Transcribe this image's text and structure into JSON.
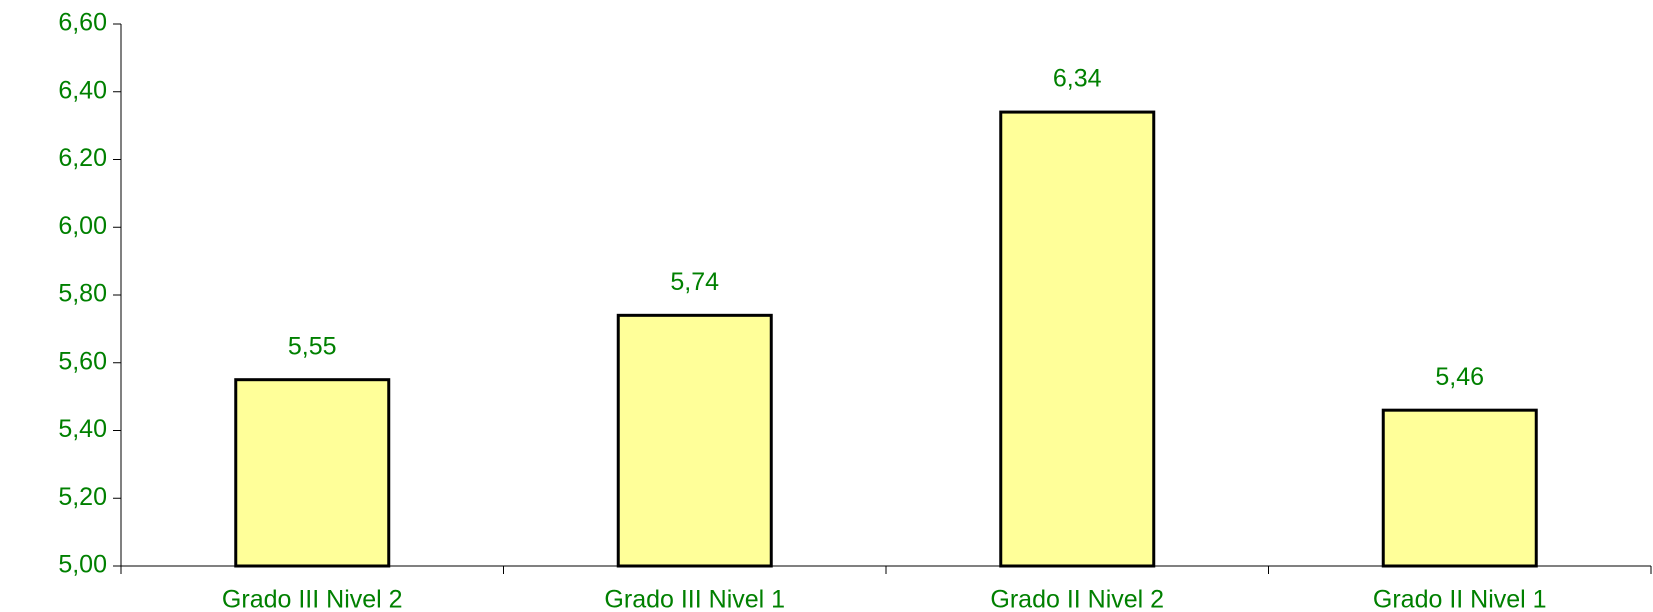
{
  "chart_data": {
    "type": "bar",
    "categories": [
      "Grado III Nivel 2",
      "Grado III Nivel 1",
      "Grado II Nivel 2",
      "Grado II Nivel 1"
    ],
    "values": [
      5.55,
      5.74,
      6.34,
      5.46
    ],
    "value_labels": [
      "5,55",
      "5,74",
      "6,34",
      "5,46"
    ],
    "color": "#ffff99",
    "ylim": [
      5,
      6.6
    ],
    "yticks": [
      {
        "value": 5,
        "label": "5,00"
      },
      {
        "value": 5.2,
        "label": "5,20"
      },
      {
        "value": 5.4,
        "label": "5,40"
      },
      {
        "value": 5.6,
        "label": "5,60"
      },
      {
        "value": 5.8,
        "label": "5,80"
      },
      {
        "value": 6,
        "label": "6,00"
      },
      {
        "value": 6.2,
        "label": "6,20"
      },
      {
        "value": 6.4,
        "label": "6,40"
      },
      {
        "value": 6.6,
        "label": "6,60"
      }
    ],
    "grid": false
  }
}
